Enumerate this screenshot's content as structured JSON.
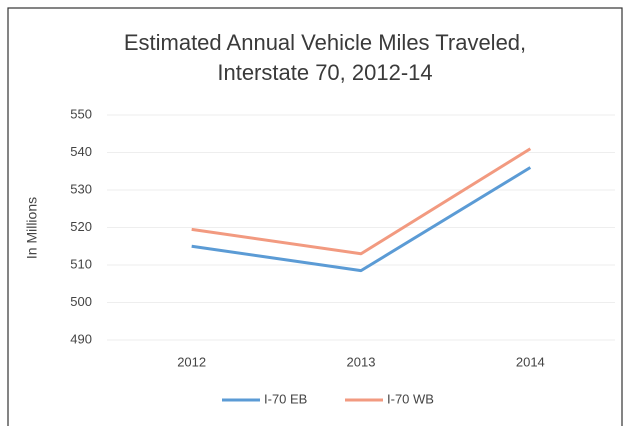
{
  "chart_data": {
    "type": "line",
    "title": "Estimated Annual Vehicle Miles Traveled, Interstate 70, 2012-14",
    "y_label": "In Millions",
    "categories": [
      "2012",
      "2013",
      "2014"
    ],
    "series": [
      {
        "name": "I-70 EB",
        "color": "#5b9bd5",
        "values": [
          515,
          508.5,
          536
        ]
      },
      {
        "name": "I-70 WB",
        "color": "#f29a80",
        "values": [
          519.5,
          513,
          541
        ]
      }
    ],
    "ylim": [
      490,
      550
    ],
    "yticks": [
      490,
      500,
      510,
      520,
      530,
      540,
      550
    ],
    "grid": true,
    "legend": "bottom"
  }
}
